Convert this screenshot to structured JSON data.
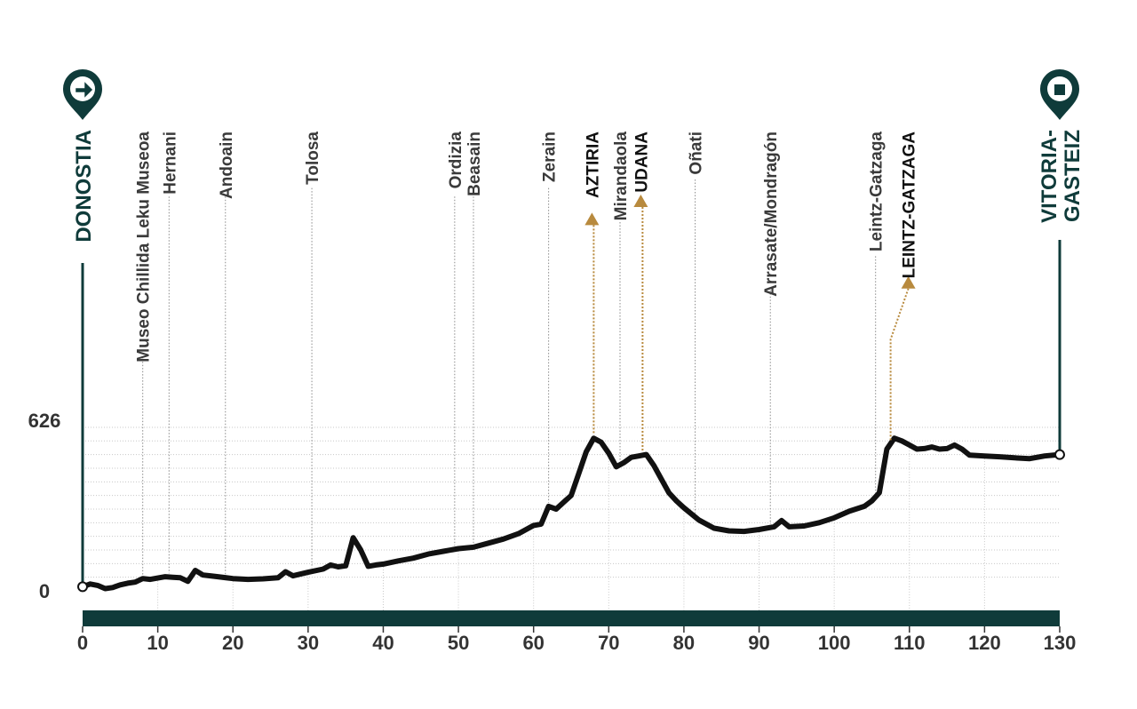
{
  "colors": {
    "profile": "#111111",
    "road_band": "#0f3b3a",
    "climb_marker": "#b88a3e",
    "end_markers": "#0f3b3a",
    "guide_lines": "#8a8a8a",
    "grid": "#c8c8c8"
  },
  "start": {
    "label": "DONOSTIA",
    "icon": "arrow-right-icon"
  },
  "finish": {
    "label_line1": "VITORIA-",
    "label_line2": "GASTEIZ",
    "icon": "square-stop-icon"
  },
  "chart_data": {
    "type": "area",
    "title": "",
    "xlabel": "",
    "ylabel": "",
    "xlim": [
      0,
      130
    ],
    "ylim": [
      0,
      626
    ],
    "x_ticks": [
      "0",
      "10",
      "20",
      "30",
      "40",
      "50",
      "60",
      "70",
      "80",
      "90",
      "100",
      "110",
      "120",
      "130"
    ],
    "y_ticks": [
      "0",
      "626"
    ],
    "grid": true,
    "series": [
      {
        "profile": [
          [
            0,
            15
          ],
          [
            1,
            25
          ],
          [
            2,
            20
          ],
          [
            3,
            8
          ],
          [
            4,
            12
          ],
          [
            5,
            22
          ],
          [
            6,
            28
          ],
          [
            7,
            32
          ],
          [
            8,
            45
          ],
          [
            9,
            42
          ],
          [
            10,
            47
          ],
          [
            11,
            52
          ],
          [
            12,
            50
          ],
          [
            13,
            48
          ],
          [
            14,
            35
          ],
          [
            15,
            75
          ],
          [
            16,
            58
          ],
          [
            17,
            55
          ],
          [
            18,
            52
          ],
          [
            20,
            45
          ],
          [
            22,
            42
          ],
          [
            24,
            44
          ],
          [
            26,
            48
          ],
          [
            27,
            70
          ],
          [
            28,
            55
          ],
          [
            30,
            68
          ],
          [
            32,
            80
          ],
          [
            33,
            95
          ],
          [
            34,
            88
          ],
          [
            35,
            92
          ],
          [
            36,
            195
          ],
          [
            37,
            150
          ],
          [
            38,
            90
          ],
          [
            39,
            95
          ],
          [
            40,
            98
          ],
          [
            42,
            110
          ],
          [
            44,
            120
          ],
          [
            46,
            135
          ],
          [
            48,
            145
          ],
          [
            50,
            155
          ],
          [
            52,
            160
          ],
          [
            54,
            175
          ],
          [
            56,
            190
          ],
          [
            58,
            210
          ],
          [
            60,
            240
          ],
          [
            61,
            245
          ],
          [
            62,
            310
          ],
          [
            63,
            300
          ],
          [
            64,
            325
          ],
          [
            65,
            350
          ],
          [
            66,
            430
          ],
          [
            67,
            510
          ],
          [
            68,
            560
          ],
          [
            69,
            545
          ],
          [
            70,
            505
          ],
          [
            71,
            455
          ],
          [
            72,
            470
          ],
          [
            73,
            490
          ],
          [
            74,
            495
          ],
          [
            75,
            500
          ],
          [
            76,
            460
          ],
          [
            77,
            410
          ],
          [
            78,
            360
          ],
          [
            79,
            330
          ],
          [
            80,
            305
          ],
          [
            82,
            260
          ],
          [
            84,
            230
          ],
          [
            86,
            220
          ],
          [
            88,
            218
          ],
          [
            90,
            225
          ],
          [
            92,
            235
          ],
          [
            93,
            258
          ],
          [
            94,
            235
          ],
          [
            96,
            238
          ],
          [
            98,
            250
          ],
          [
            100,
            268
          ],
          [
            102,
            292
          ],
          [
            104,
            310
          ],
          [
            105,
            330
          ],
          [
            106,
            360
          ],
          [
            107,
            520
          ],
          [
            108,
            560
          ],
          [
            109,
            550
          ],
          [
            110,
            535
          ],
          [
            111,
            520
          ],
          [
            112,
            522
          ],
          [
            113,
            528
          ],
          [
            114,
            520
          ],
          [
            115,
            522
          ],
          [
            116,
            535
          ],
          [
            117,
            520
          ],
          [
            118,
            498
          ],
          [
            120,
            495
          ],
          [
            122,
            492
          ],
          [
            124,
            488
          ],
          [
            126,
            485
          ],
          [
            128,
            495
          ],
          [
            130,
            500
          ]
        ]
      }
    ],
    "places": [
      {
        "name": "Museo Chillida Leku Museoa",
        "km": 8
      },
      {
        "name": "Hernani",
        "km": 11.5
      },
      {
        "name": "Andoain",
        "km": 19
      },
      {
        "name": "Tolosa",
        "km": 30.5
      },
      {
        "name": "Ordizia",
        "km": 49.5
      },
      {
        "name": "Beasain",
        "km": 52
      },
      {
        "name": "Zerain",
        "km": 62
      },
      {
        "name": "Mirandaola",
        "km": 71.5
      },
      {
        "name": "Oñati",
        "km": 81.5
      },
      {
        "name": "Arrasate/Mondragón",
        "km": 91.5
      },
      {
        "name": "Leintz-Gatzaga",
        "km": 105.5
      }
    ],
    "climbs": [
      {
        "name": "AZTIRIA",
        "km": 68
      },
      {
        "name": "UDANA",
        "km": 74.5
      },
      {
        "name": "LEINTZ-GATZAGA",
        "km": 107.5
      }
    ]
  }
}
